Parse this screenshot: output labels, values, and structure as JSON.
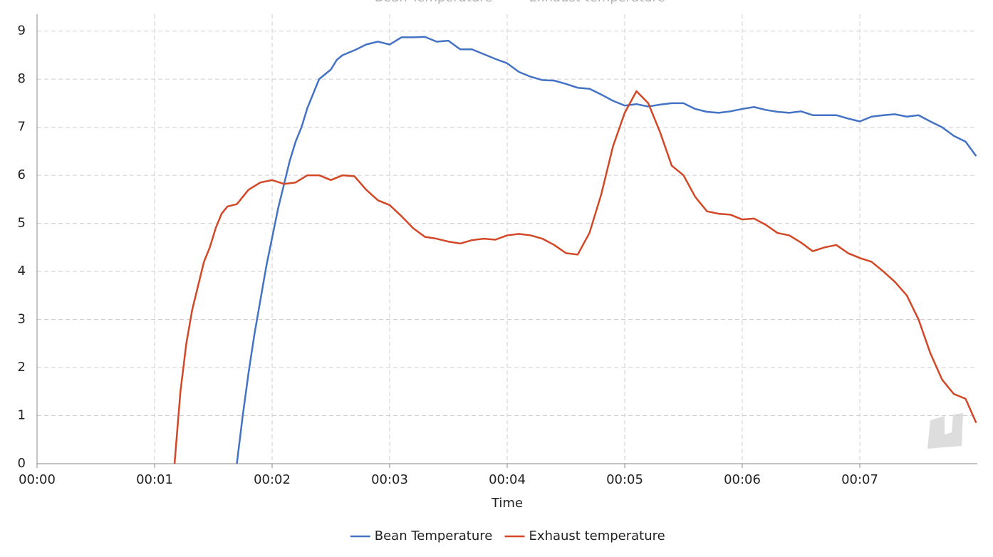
{
  "chart_data": {
    "type": "line",
    "x_label": "Time",
    "xlim": [
      0,
      8
    ],
    "ylim": [
      0,
      9.35
    ],
    "xticks": [
      {
        "value": 0,
        "label": "00:00"
      },
      {
        "value": 1,
        "label": "00:01"
      },
      {
        "value": 2,
        "label": "00:02"
      },
      {
        "value": 3,
        "label": "00:03"
      },
      {
        "value": 4,
        "label": "00:04"
      },
      {
        "value": 5,
        "label": "00:05"
      },
      {
        "value": 6,
        "label": "00:06"
      },
      {
        "value": 7,
        "label": "00:07"
      }
    ],
    "yticks": [
      0,
      1,
      2,
      3,
      4,
      5,
      6,
      7,
      8,
      9
    ],
    "grid": true,
    "legend": "bottom",
    "series": [
      {
        "name": "Bean Temperature",
        "color": "#4472c4",
        "x": [
          1.7,
          1.75,
          1.8,
          1.85,
          1.9,
          1.95,
          2.0,
          2.05,
          2.1,
          2.15,
          2.2,
          2.25,
          2.3,
          2.35,
          2.4,
          2.45,
          2.5,
          2.55,
          2.6,
          2.7,
          2.8,
          2.9,
          3.0,
          3.1,
          3.2,
          3.3,
          3.4,
          3.5,
          3.6,
          3.7,
          3.8,
          3.9,
          4.0,
          4.1,
          4.2,
          4.3,
          4.4,
          4.5,
          4.6,
          4.7,
          4.8,
          4.9,
          5.0,
          5.1,
          5.2,
          5.3,
          5.4,
          5.5,
          5.6,
          5.7,
          5.8,
          5.9,
          6.0,
          6.1,
          6.2,
          6.3,
          6.4,
          6.5,
          6.6,
          6.7,
          6.8,
          6.9,
          7.0,
          7.1,
          7.2,
          7.3,
          7.4,
          7.5,
          7.6,
          7.7,
          7.8,
          7.9,
          7.99
        ],
        "values": [
          0,
          1.0,
          1.9,
          2.7,
          3.4,
          4.1,
          4.7,
          5.3,
          5.8,
          6.3,
          6.7,
          7.0,
          7.4,
          7.7,
          8.0,
          8.1,
          8.2,
          8.4,
          8.5,
          8.6,
          8.72,
          8.78,
          8.72,
          8.87,
          8.87,
          8.88,
          8.78,
          8.8,
          8.62,
          8.62,
          8.52,
          8.42,
          8.33,
          8.15,
          8.05,
          7.98,
          7.97,
          7.9,
          7.82,
          7.8,
          7.68,
          7.55,
          7.45,
          7.48,
          7.43,
          7.47,
          7.5,
          7.5,
          7.38,
          7.32,
          7.3,
          7.33,
          7.38,
          7.42,
          7.36,
          7.32,
          7.3,
          7.33,
          7.25,
          7.25,
          7.25,
          7.18,
          7.12,
          7.22,
          7.25,
          7.27,
          7.22,
          7.25,
          7.12,
          7.0,
          6.82,
          6.7,
          6.4
        ]
      },
      {
        "name": "Exhaust temperature",
        "color": "#d24726",
        "x": [
          1.17,
          1.22,
          1.27,
          1.32,
          1.37,
          1.42,
          1.47,
          1.52,
          1.57,
          1.62,
          1.7,
          1.8,
          1.9,
          2.0,
          2.1,
          2.2,
          2.3,
          2.4,
          2.5,
          2.6,
          2.7,
          2.8,
          2.9,
          3.0,
          3.1,
          3.2,
          3.3,
          3.4,
          3.5,
          3.6,
          3.7,
          3.8,
          3.9,
          4.0,
          4.1,
          4.2,
          4.3,
          4.4,
          4.5,
          4.6,
          4.7,
          4.8,
          4.9,
          5.0,
          5.1,
          5.2,
          5.3,
          5.4,
          5.5,
          5.6,
          5.7,
          5.8,
          5.9,
          6.0,
          6.1,
          6.2,
          6.3,
          6.4,
          6.5,
          6.6,
          6.7,
          6.8,
          6.9,
          7.0,
          7.1,
          7.2,
          7.3,
          7.4,
          7.5,
          7.6,
          7.7,
          7.8,
          7.9,
          7.99
        ],
        "values": [
          0,
          1.5,
          2.5,
          3.2,
          3.7,
          4.2,
          4.5,
          4.9,
          5.2,
          5.35,
          5.4,
          5.7,
          5.85,
          5.9,
          5.82,
          5.85,
          6.0,
          6.0,
          5.9,
          6.0,
          5.98,
          5.7,
          5.48,
          5.38,
          5.15,
          4.9,
          4.72,
          4.68,
          4.62,
          4.58,
          4.65,
          4.68,
          4.66,
          4.75,
          4.78,
          4.75,
          4.68,
          4.55,
          4.38,
          4.35,
          4.8,
          5.6,
          6.6,
          7.3,
          7.75,
          7.5,
          6.9,
          6.2,
          6.0,
          5.55,
          5.25,
          5.2,
          5.18,
          5.08,
          5.1,
          4.97,
          4.8,
          4.75,
          4.6,
          4.42,
          4.5,
          4.55,
          4.38,
          4.28,
          4.2,
          4.0,
          3.78,
          3.5,
          3.0,
          2.3,
          1.75,
          1.45,
          1.35,
          0.85
        ]
      }
    ]
  }
}
